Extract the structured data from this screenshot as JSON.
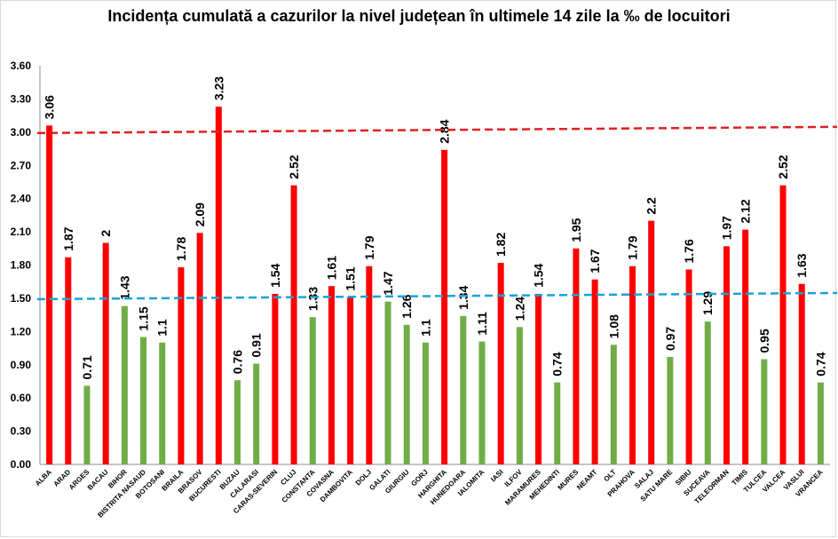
{
  "chart_data": {
    "type": "bar",
    "title": "Incidența cumulată a cazurilor la nivel județean în ultimele 14 zile la ‰ de locuitori",
    "xlabel": "",
    "ylabel": "",
    "ylim": [
      0,
      3.6
    ],
    "yticks": [
      "0.00",
      "0.30",
      "0.60",
      "0.90",
      "1.20",
      "1.50",
      "1.80",
      "2.10",
      "2.40",
      "2.70",
      "3.00",
      "3.30",
      "3.60"
    ],
    "grid": false,
    "categories": [
      "ALBA",
      "ARAD",
      "ARGES",
      "BACAU",
      "BIHOR",
      "BISTRITA NASAUD",
      "BOTOSANI",
      "BRAILA",
      "BRASOV",
      "BUCURESTI",
      "BUZAU",
      "CALARASI",
      "CARAS-SEVERIN",
      "CLUJ",
      "CONSTANTA",
      "COVASNA",
      "DAMBOVITA",
      "DOLJ",
      "GALATI",
      "GIURGIU",
      "GORJ",
      "HARGHITA",
      "HUNEDOARA",
      "IALOMITA",
      "IASI",
      "ILFOV",
      "MARAMURES",
      "MEHEDINTI",
      "MURES",
      "NEAMT",
      "OLT",
      "PRAHOVA",
      "SALAJ",
      "SATU MARE",
      "SIBIU",
      "SUCEAVA",
      "TELEORMAN",
      "TIMIS",
      "TULCEA",
      "VALCEA",
      "VASLUI",
      "VRANCEA"
    ],
    "values": [
      3.06,
      1.87,
      0.71,
      2,
      1.43,
      1.15,
      1.1,
      1.78,
      2.09,
      3.23,
      0.76,
      0.91,
      1.54,
      2.52,
      1.33,
      1.61,
      1.51,
      1.79,
      1.47,
      1.26,
      1.1,
      2.84,
      1.34,
      1.11,
      1.82,
      1.24,
      1.54,
      0.74,
      1.95,
      1.67,
      1.08,
      1.79,
      2.2,
      0.97,
      1.76,
      1.29,
      1.97,
      2.12,
      0.95,
      2.52,
      1.63,
      0.74
    ],
    "value_labels": [
      "3.06",
      "1.87",
      "0.71",
      "2",
      "1.43",
      "1.15",
      "1.1",
      "1.78",
      "2.09",
      "3.23",
      "0.76",
      "0.91",
      "1.54",
      "2.52",
      "1.33",
      "1.61",
      "1.51",
      "1.79",
      "1.47",
      "1.26",
      "1.1",
      "2.84",
      "1.34",
      "1.11",
      "1.82",
      "1.24",
      "1.54",
      "0.74",
      "1.95",
      "1.67",
      "1.08",
      "1.79",
      "2.2",
      "0.97",
      "1.76",
      "1.29",
      "1.97",
      "2.12",
      "0.95",
      "2.52",
      "1.63",
      "0.74"
    ],
    "threshold_color_rule": "red if value > 1.5, green otherwise",
    "reference_lines": [
      {
        "value": 3.0,
        "style": "dashed",
        "color": "#e02020"
      },
      {
        "value": 1.5,
        "style": "dashed",
        "color": "#1aa3d6"
      }
    ],
    "colors": {
      "above": "#ff0000",
      "below": "#70ad47",
      "axis": "#8c8c8c",
      "text": "#000000"
    }
  }
}
